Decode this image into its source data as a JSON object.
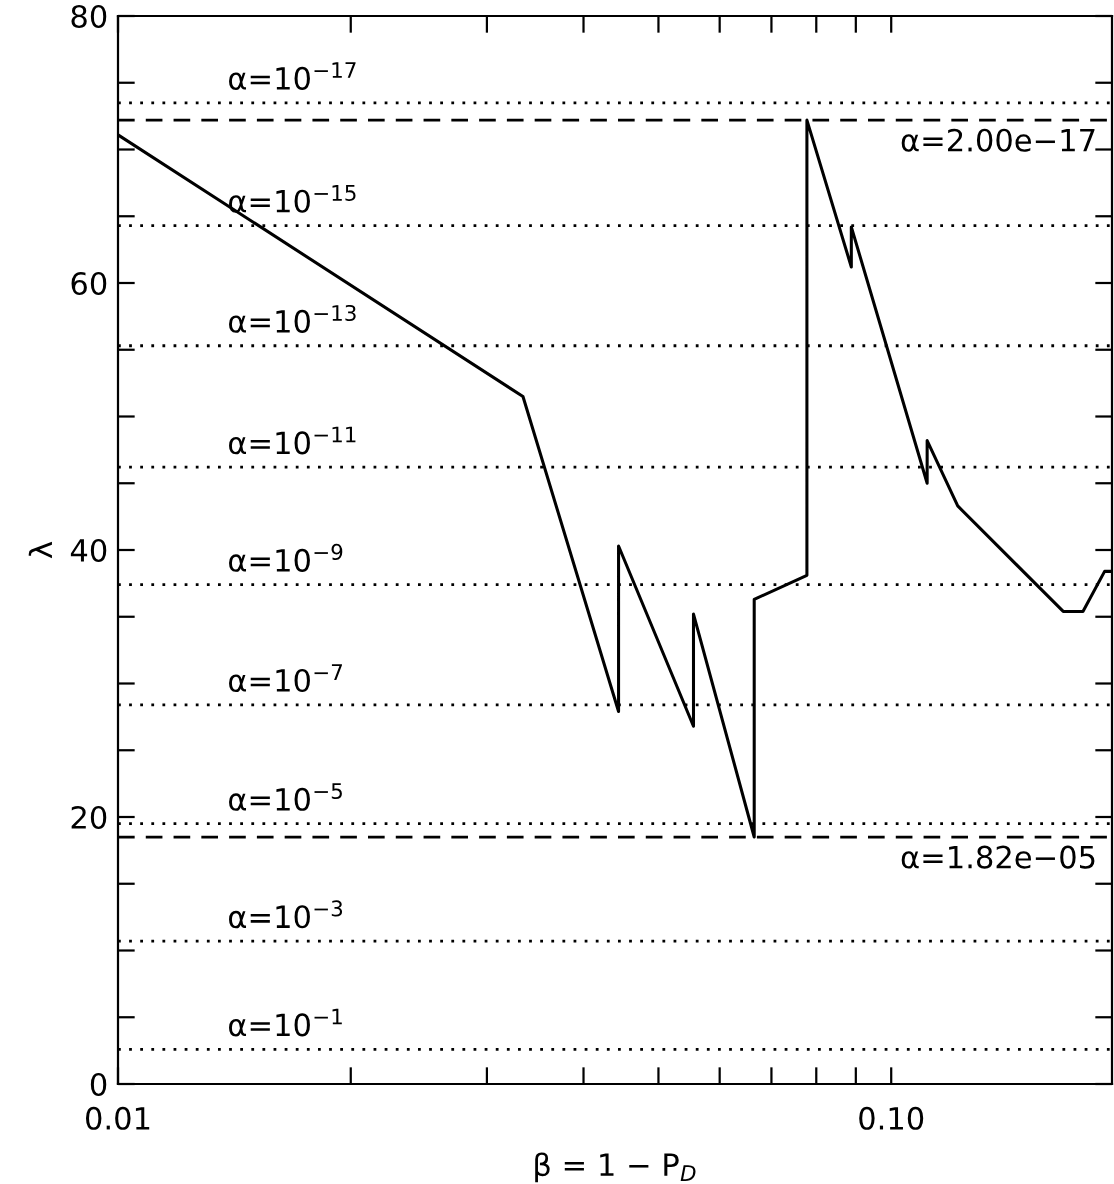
{
  "chart_data": {
    "type": "line",
    "xlabel": "β = 1 − P$_{D}$",
    "ylabel": "λ",
    "log": "x",
    "xlim": [
      0.01,
      0.193
    ],
    "ylim": [
      0,
      80
    ],
    "xticks": [
      {
        "value": 0.01,
        "label": "0.01"
      },
      {
        "value": 0.02,
        "label": null
      },
      {
        "value": 0.03,
        "label": null
      },
      {
        "value": 0.04,
        "label": null
      },
      {
        "value": 0.05,
        "label": null
      },
      {
        "value": 0.06,
        "label": null
      },
      {
        "value": 0.07,
        "label": null
      },
      {
        "value": 0.08,
        "label": null
      },
      {
        "value": 0.09,
        "label": null
      },
      {
        "value": 0.1,
        "label": "0.10"
      }
    ],
    "yticks": [
      0,
      {
        "value": 5,
        "label": null
      },
      {
        "value": 10,
        "label": null
      },
      {
        "value": 15,
        "label": null
      },
      20,
      {
        "value": 25,
        "label": null
      },
      {
        "value": 30,
        "label": null
      },
      {
        "value": 35,
        "label": null
      },
      40,
      {
        "value": 45,
        "label": null
      },
      {
        "value": 50,
        "label": null
      },
      {
        "value": 55,
        "label": null
      },
      60,
      {
        "value": 65,
        "label": null
      },
      {
        "value": 70,
        "label": null
      },
      {
        "value": 75,
        "label": null
      },
      80
    ],
    "grid": false,
    "legend": false,
    "marker": "none",
    "line_style": "solid",
    "series": [
      {
        "color": "#000000",
        "x": [
          0.01,
          0.0334,
          0.0444,
          0.0444,
          0.0555,
          0.0555,
          0.0665,
          0.0665,
          0.0778,
          0.0778,
          0.0888,
          0.0888,
          0.1113,
          0.1113,
          0.1219,
          0.1669,
          0.177,
          0.1888,
          0.193
        ],
        "values": [
          71.1,
          51.5,
          27.9,
          40.3,
          26.8,
          35.2,
          18.5,
          36.3,
          38.1,
          72.2,
          61.2,
          64.2,
          45.0,
          48.2,
          43.3,
          35.4,
          35.4,
          38.4,
          38.4
        ]
      }
    ],
    "ref_lines": [
      {
        "axis": "y",
        "value": 73.5,
        "line_style": "dotted",
        "color": "#000000"
      },
      {
        "axis": "y",
        "value": 72.2,
        "line_style": "dashed",
        "color": "#000000"
      },
      {
        "axis": "y",
        "value": 64.3,
        "line_style": "dotted",
        "color": "#000000"
      },
      {
        "axis": "y",
        "value": 55.3,
        "line_style": "dotted",
        "color": "#000000"
      },
      {
        "axis": "y",
        "value": 46.2,
        "line_style": "dotted",
        "color": "#000000"
      },
      {
        "axis": "y",
        "value": 37.4,
        "line_style": "dotted",
        "color": "#000000"
      },
      {
        "axis": "y",
        "value": 28.4,
        "line_style": "dotted",
        "color": "#000000"
      },
      {
        "axis": "y",
        "value": 19.5,
        "line_style": "dotted",
        "color": "#000000"
      },
      {
        "axis": "y",
        "value": 18.5,
        "line_style": "dashed",
        "color": "#000000"
      },
      {
        "axis": "y",
        "value": 10.7,
        "line_style": "dotted",
        "color": "#000000"
      },
      {
        "axis": "y",
        "value": 2.6,
        "line_style": "dotted",
        "color": "#000000"
      }
    ],
    "annotations": [
      {
        "text": "α=10$^{−17}$",
        "y": 73.5
      },
      {
        "text": "α=2.00e−17",
        "y": 72.2
      },
      {
        "text": "α=10$^{−15}$",
        "y": 64.3
      },
      {
        "text": "α=10$^{−13}$",
        "y": 55.3
      },
      {
        "text": "α=10$^{−11}$",
        "y": 46.2
      },
      {
        "text": "α=10$^{−9}$",
        "y": 37.4
      },
      {
        "text": "α=10$^{−7}$",
        "y": 28.4
      },
      {
        "text": "α=10$^{−5}$",
        "y": 19.5
      },
      {
        "text": "α=1.82e−05",
        "y": 18.5
      },
      {
        "text": "α=10$^{−3}$",
        "y": 10.7
      },
      {
        "text": "α=10$^{−1}$",
        "y": 2.6
      }
    ]
  }
}
